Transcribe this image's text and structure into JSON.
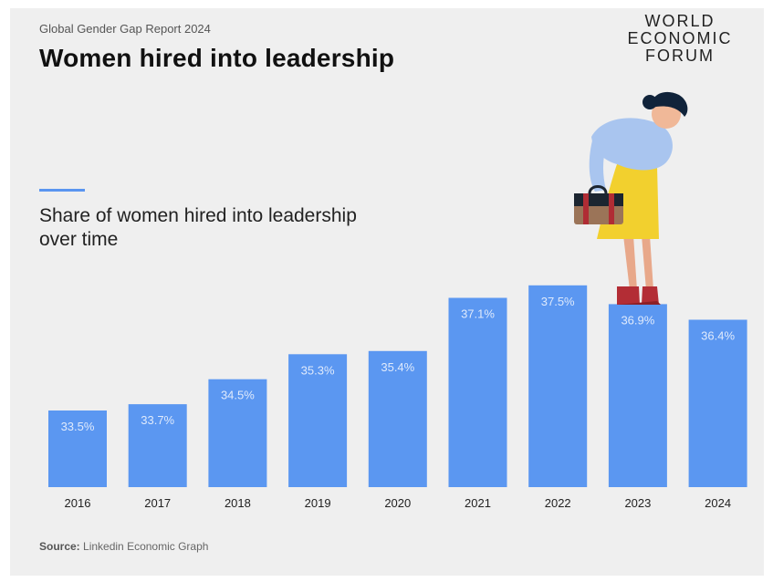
{
  "header": {
    "report": "Global Gender Gap Report 2024",
    "title": "Women hired into leadership",
    "logo_lines": [
      "WORLD",
      "ECONOMIC",
      "FORUM"
    ]
  },
  "series_title": "Share of women hired into leadership over time",
  "footer": {
    "source_label": "Source:",
    "source_text": "Linkedin Economic Graph"
  },
  "colors": {
    "bar": "#5b97f1",
    "background": "#efefef",
    "accent": "#5a95f0"
  },
  "chart_data": {
    "type": "bar",
    "title": "Women hired into leadership",
    "subtitle": "Share of women hired into leadership over time",
    "categories": [
      "2016",
      "2017",
      "2018",
      "2019",
      "2020",
      "2021",
      "2022",
      "2023",
      "2024"
    ],
    "values": [
      33.5,
      33.7,
      34.5,
      35.3,
      35.4,
      37.1,
      37.5,
      36.9,
      36.4
    ],
    "labels": [
      "33.5%",
      "33.7%",
      "34.5%",
      "35.3%",
      "35.4%",
      "37.1%",
      "37.5%",
      "36.9%",
      "36.4%"
    ],
    "xlabel": "",
    "ylabel": "",
    "grid": false,
    "legend": "none"
  }
}
